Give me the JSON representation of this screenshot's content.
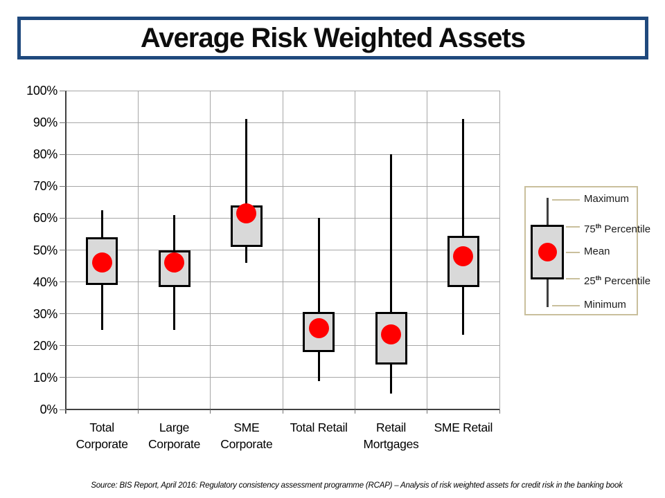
{
  "header": {
    "title": "Average Risk Weighted Assets"
  },
  "footer": {
    "source": "Source: BIS Report,  April 2016: Regulatory consistency assessment programme (RCAP) – Analysis of risk weighted assets for credit risk in the banking book"
  },
  "colors": {
    "title_border": "#1F497D",
    "box_fill": "#D9D9D9",
    "box_border": "#000000",
    "mean_dot": "#FF0000",
    "gridline": "#A6A6A6",
    "axis": "#404040",
    "tick": "#737373",
    "legend_border": "#C9BF9C",
    "text": "#000000"
  },
  "legend": {
    "items": [
      {
        "label": "Maximum"
      },
      {
        "pre": "75",
        "sup": "th",
        "post": " Percentile"
      },
      {
        "label": "Mean"
      },
      {
        "pre": "25",
        "sup": "th",
        "post": " Percentile"
      },
      {
        "label": "Minimum"
      }
    ]
  },
  "chart_data": {
    "type": "boxplot",
    "title": "Average Risk Weighted Assets",
    "unit": "%",
    "ylim": [
      0,
      100
    ],
    "ytick_step": 10,
    "grid": true,
    "legend_position": "right",
    "ytick_labels": [
      "100%",
      "90%",
      "80%",
      "70%",
      "60%",
      "50%",
      "40%",
      "30%",
      "20%",
      "10%",
      "0%"
    ],
    "categories": [
      "Total Corporate",
      "Large Corporate",
      "SME Corporate",
      "Total Retail",
      "Retail Mortgages",
      "SME Retail"
    ],
    "category_label_lines": [
      [
        "Total",
        "Corporate"
      ],
      [
        "Large",
        "Corporate"
      ],
      [
        "SME",
        "Corporate"
      ],
      [
        "Total Retail"
      ],
      [
        "Retail",
        "Mortgages"
      ],
      [
        "SME Retail"
      ]
    ],
    "series": [
      {
        "category": "Total Corporate",
        "min": 25,
        "p25": 39,
        "mean": 46,
        "p75": 54,
        "max": 62.5
      },
      {
        "category": "Large Corporate",
        "min": 25,
        "p25": 38.5,
        "mean": 46,
        "p75": 50,
        "max": 61
      },
      {
        "category": "SME Corporate",
        "min": 46,
        "p25": 51,
        "mean": 61.5,
        "p75": 64,
        "max": 91
      },
      {
        "category": "Total Retail",
        "min": 9,
        "p25": 18,
        "mean": 25.5,
        "p75": 30.5,
        "max": 60
      },
      {
        "category": "Retail Mortgages",
        "min": 5,
        "p25": 14,
        "mean": 23.5,
        "p75": 30.5,
        "max": 80
      },
      {
        "category": "SME Retail",
        "min": 23.5,
        "p25": 38.5,
        "mean": 48,
        "p75": 54.5,
        "max": 91
      }
    ]
  }
}
